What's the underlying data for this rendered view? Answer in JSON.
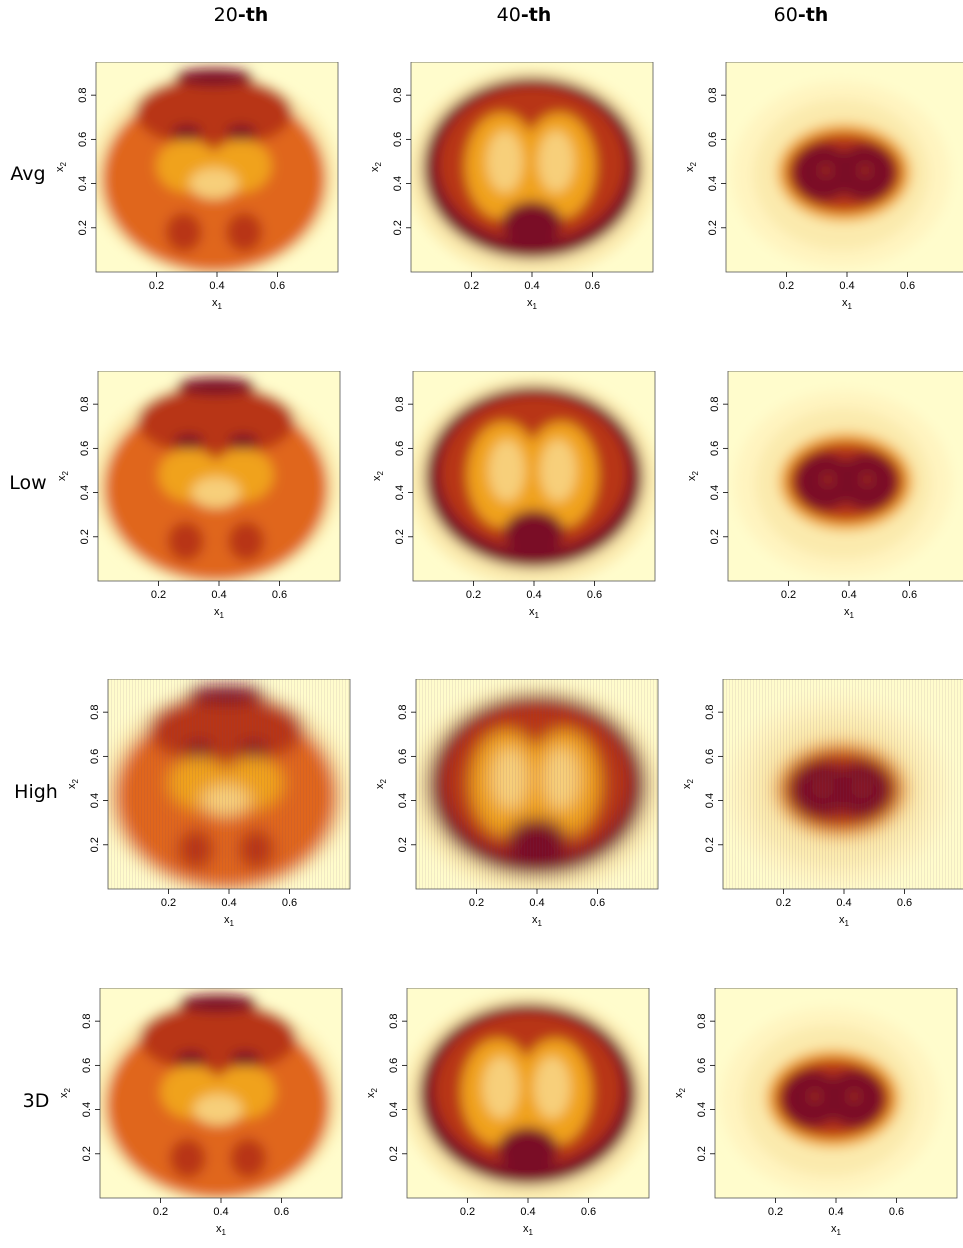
{
  "columns": [
    {
      "num": "20",
      "suffix": "-th"
    },
    {
      "num": "40",
      "suffix": "-th"
    },
    {
      "num": "60",
      "suffix": "-th"
    }
  ],
  "rows": [
    "Avg",
    "Low",
    "High",
    "3D"
  ],
  "axes": {
    "xlabel": "x",
    "xlabel_sub": "1",
    "ylabel": "x",
    "ylabel_sub": "2",
    "x_ticks": [
      "0.2",
      "0.4",
      "0.6"
    ],
    "y_ticks": [
      "0.2",
      "0.4",
      "0.6",
      "0.8"
    ],
    "x_tick_values": [
      0.2,
      0.4,
      0.6
    ],
    "y_tick_values": [
      0.2,
      0.4,
      0.6,
      0.8
    ],
    "xlim": [
      0.0,
      0.8
    ],
    "ylim": [
      0.0,
      0.95
    ]
  },
  "colors": {
    "background": "#fffccc",
    "pale": "#fbeaad",
    "light": "#f7cf7a",
    "orange": "#f0a21f",
    "deep_orange": "#e0661a",
    "red": "#b83415",
    "dark": "#7a0f26",
    "hatched_tint": "#6b3a7a"
  },
  "chart_data": {
    "type": "heatmap",
    "description_source": "image grid of brain slice intensity maps",
    "column_labels": [
      "20-th",
      "40-th",
      "60-th"
    ],
    "row_labels": [
      "Avg",
      "Low",
      "High",
      "3D"
    ],
    "xlim": [
      0.0,
      0.8
    ],
    "ylim": [
      0.0,
      0.95
    ]
  }
}
